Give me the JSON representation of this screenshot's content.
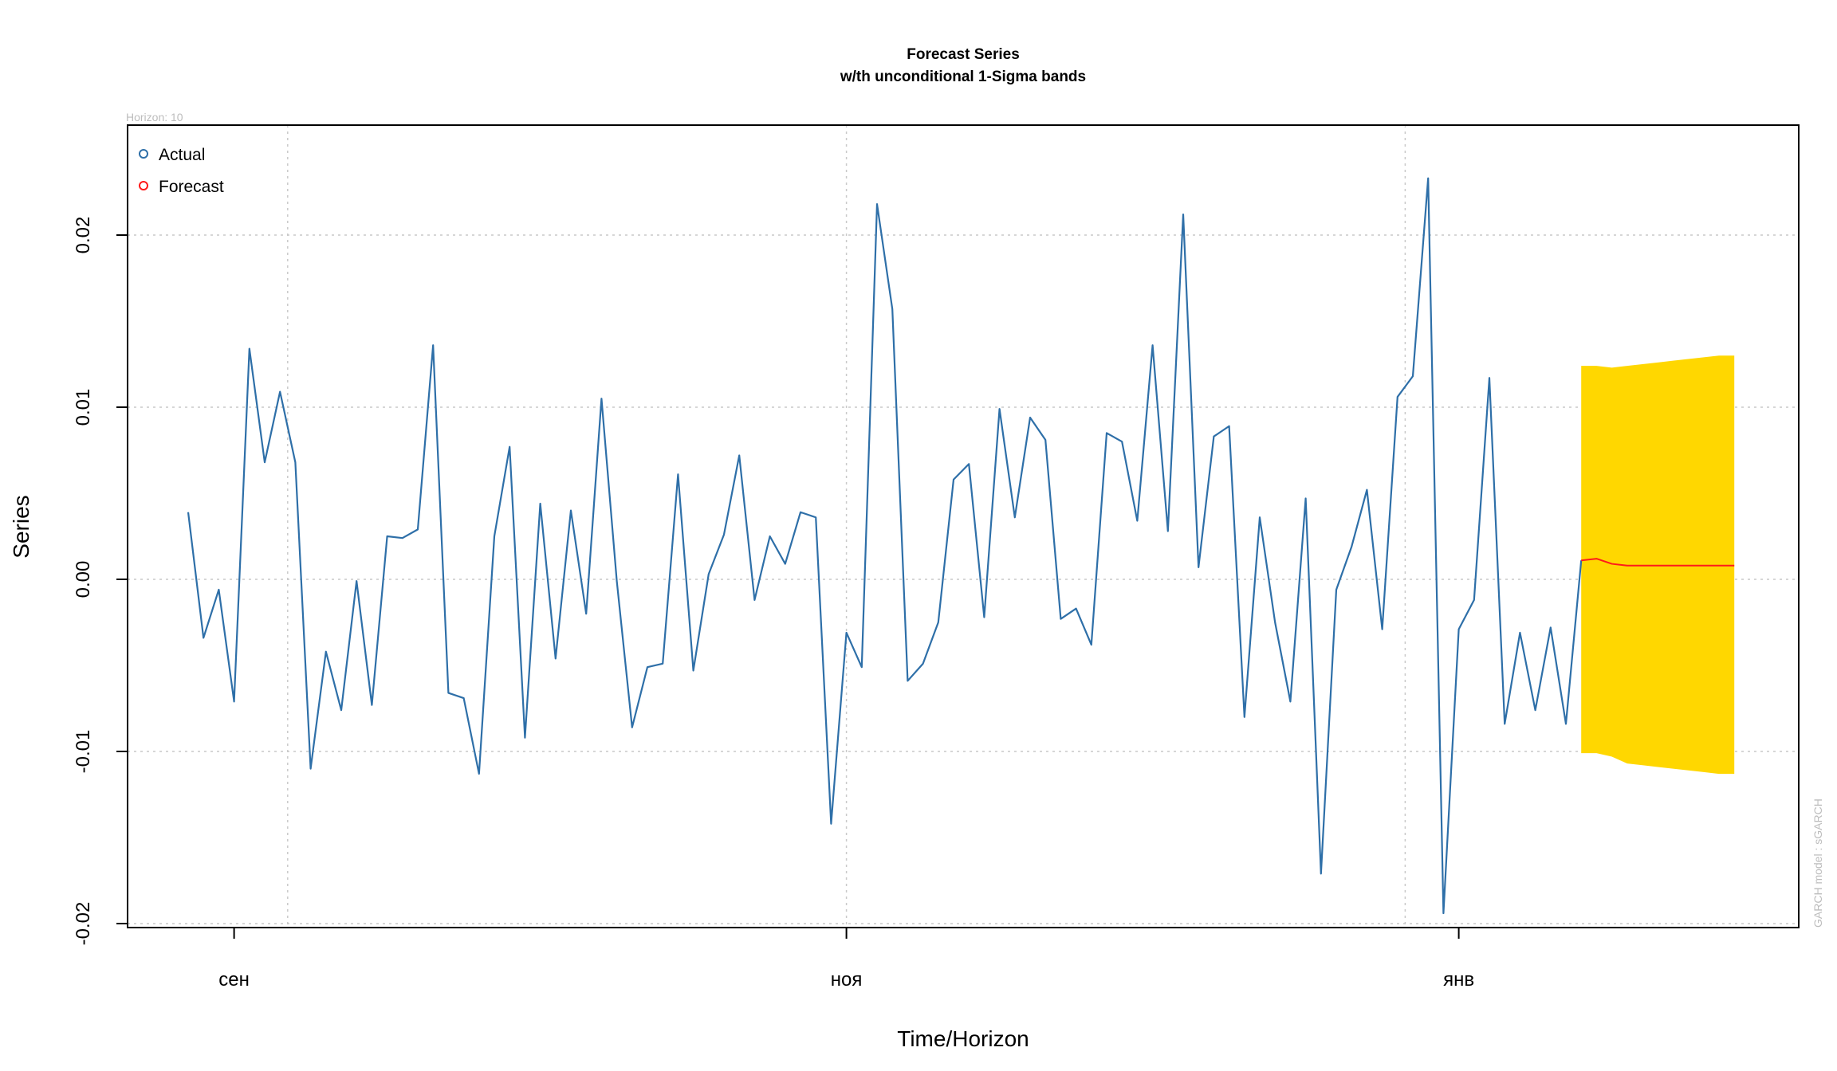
{
  "chart_data": {
    "type": "line",
    "title": "Forecast Series",
    "subtitle": "w/th unconditional 1-Sigma bands",
    "xlabel": "Time/Horizon",
    "ylabel": "Series",
    "horizon_note": "Horizon: 10",
    "model_note": "GARCH model : sGARCH",
    "ylim": [
      -0.02,
      0.025
    ],
    "y_ticks": [
      {
        "value": -0.02,
        "label": "-0.02"
      },
      {
        "value": -0.01,
        "label": "-0.01"
      },
      {
        "value": 0.0,
        "label": "0.00"
      },
      {
        "value": 0.01,
        "label": "0.01"
      },
      {
        "value": 0.02,
        "label": "0.02"
      }
    ],
    "x_ticks": [
      {
        "index": 3,
        "label": "сен"
      },
      {
        "index": 43,
        "label": "ноя"
      },
      {
        "index": 83,
        "label": "янв"
      }
    ],
    "x_grid_index": [
      6.5,
      43,
      79.5
    ],
    "grid": true,
    "legend_position": "top-left",
    "colors": {
      "actual": "#2e6fa8",
      "forecast": "#ff1a1a",
      "band": "#ffd700",
      "grid": "#c9c9c9"
    },
    "series": [
      {
        "name": "Actual",
        "values": [
          0.0039,
          -0.0034,
          -0.0006,
          -0.0071,
          0.0134,
          0.0068,
          0.0109,
          0.0068,
          -0.011,
          -0.0042,
          -0.0076,
          -0.0001,
          -0.0073,
          0.0025,
          0.0024,
          0.0029,
          0.0136,
          -0.0066,
          -0.0069,
          -0.0113,
          0.0025,
          0.0077,
          -0.0092,
          0.0044,
          -0.0046,
          0.004,
          -0.002,
          0.0105,
          -0.0001,
          -0.0086,
          -0.0051,
          -0.0049,
          0.0061,
          -0.0053,
          0.0003,
          0.0026,
          0.0072,
          -0.0012,
          0.0025,
          0.0009,
          0.0039,
          0.0036,
          -0.0142,
          -0.0031,
          -0.0051,
          0.0218,
          0.0157,
          -0.0059,
          -0.0049,
          -0.0025,
          0.0058,
          0.0067,
          -0.0022,
          0.0099,
          0.0036,
          0.0094,
          0.0081,
          -0.0023,
          -0.0017,
          -0.0038,
          0.0085,
          0.008,
          0.0034,
          0.0136,
          0.0028,
          0.0212,
          0.0007,
          0.0083,
          0.0089,
          -0.008,
          0.0036,
          -0.0025,
          -0.0071,
          0.0047,
          -0.0171,
          -0.0006,
          0.0019,
          0.0052,
          -0.0029,
          0.0106,
          0.0118,
          0.0233,
          -0.0194,
          -0.0029,
          -0.0012,
          0.0117,
          -0.0084,
          -0.0031,
          -0.0076,
          -0.0028,
          -0.0084,
          0.0011
        ]
      },
      {
        "name": "Forecast",
        "values": [
          0.0011,
          0.0012,
          0.0009,
          0.0008,
          0.0008,
          0.0008,
          0.0008,
          0.0008,
          0.0008,
          0.0008,
          0.0008
        ]
      }
    ],
    "forecast_start_index": 91,
    "band_upper": [
      0.0124,
      0.0124,
      0.0123,
      0.0124,
      0.0125,
      0.0126,
      0.0127,
      0.0128,
      0.0129,
      0.013,
      0.013
    ],
    "band_lower": [
      -0.0101,
      -0.0101,
      -0.0103,
      -0.0107,
      -0.0108,
      -0.0109,
      -0.011,
      -0.0111,
      -0.0112,
      -0.0113,
      -0.0113
    ]
  }
}
